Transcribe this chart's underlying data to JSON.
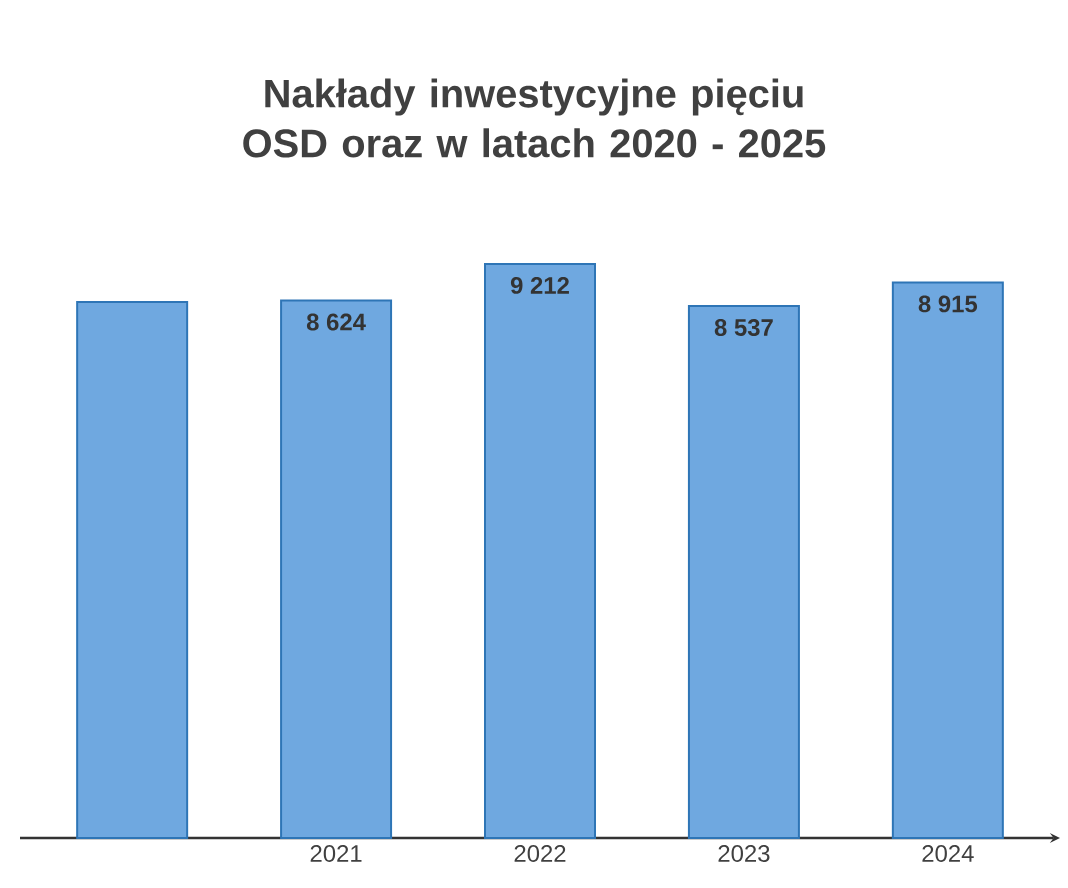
{
  "chart_data": {
    "type": "bar",
    "title": "Nakłady inwestycyjne pięciu OSD oraz w latach 2020 - 2025",
    "categories": [
      null,
      "2021",
      "2022",
      "2023",
      "2024"
    ],
    "values": [
      8600,
      8624,
      9212,
      8537,
      8915
    ],
    "value_labels": [
      null,
      "8 624",
      "9 212",
      "8 537",
      "8 915"
    ],
    "color": "#6fa8e0"
  }
}
